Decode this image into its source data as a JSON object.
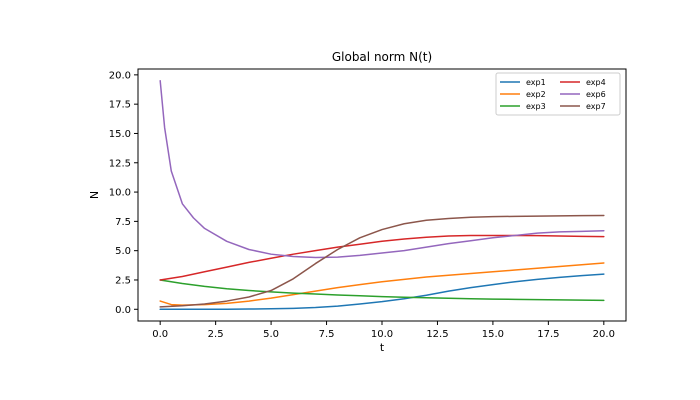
{
  "chart_data": {
    "type": "line",
    "title": "Global norm N(t)",
    "xlabel": "t",
    "ylabel": "N",
    "xlim": [
      -1.0,
      21.0
    ],
    "ylim": [
      -1.0,
      20.5
    ],
    "xticks": [
      0.0,
      2.5,
      5.0,
      7.5,
      10.0,
      12.5,
      15.0,
      17.5,
      20.0
    ],
    "xtick_labels": [
      "0.0",
      "2.5",
      "5.0",
      "7.5",
      "10.0",
      "12.5",
      "15.0",
      "17.5",
      "20.0"
    ],
    "yticks": [
      0.0,
      2.5,
      5.0,
      7.5,
      10.0,
      12.5,
      15.0,
      17.5,
      20.0
    ],
    "ytick_labels": [
      "0.0",
      "2.5",
      "5.0",
      "7.5",
      "10.0",
      "12.5",
      "15.0",
      "17.5",
      "20.0"
    ],
    "grid": false,
    "legend_position": "top-right",
    "legend_columns": 2,
    "series": [
      {
        "name": "exp1",
        "color": "#1f77b4",
        "x": [
          0,
          1,
          2,
          3,
          4,
          5,
          6,
          7,
          8,
          9,
          10,
          11,
          12,
          13,
          14,
          15,
          16,
          17,
          18,
          19,
          20
        ],
        "y": [
          0.0,
          0.0,
          0.0,
          0.0,
          0.02,
          0.05,
          0.08,
          0.15,
          0.27,
          0.45,
          0.65,
          0.9,
          1.2,
          1.55,
          1.85,
          2.1,
          2.35,
          2.55,
          2.72,
          2.87,
          3.0
        ]
      },
      {
        "name": "exp2",
        "color": "#ff7f0e",
        "x": [
          0,
          0.5,
          1,
          2,
          3,
          4,
          5,
          6,
          7,
          8,
          9,
          10,
          11,
          12,
          13,
          14,
          15,
          16,
          17,
          18,
          19,
          20
        ],
        "y": [
          0.7,
          0.4,
          0.35,
          0.4,
          0.5,
          0.7,
          0.95,
          1.25,
          1.55,
          1.85,
          2.1,
          2.35,
          2.55,
          2.75,
          2.9,
          3.05,
          3.2,
          3.35,
          3.5,
          3.65,
          3.8,
          3.95
        ]
      },
      {
        "name": "exp3",
        "color": "#2ca02c",
        "x": [
          0,
          1,
          2,
          3,
          4,
          5,
          6,
          7,
          8,
          9,
          10,
          11,
          12,
          13,
          14,
          15,
          16,
          17,
          18,
          19,
          20
        ],
        "y": [
          2.5,
          2.2,
          1.95,
          1.75,
          1.6,
          1.48,
          1.38,
          1.3,
          1.22,
          1.15,
          1.08,
          1.03,
          0.98,
          0.94,
          0.9,
          0.87,
          0.85,
          0.82,
          0.8,
          0.78,
          0.76
        ]
      },
      {
        "name": "exp4",
        "color": "#d62728",
        "x": [
          0,
          1,
          2,
          3,
          4,
          5,
          6,
          7,
          8,
          9,
          10,
          11,
          12,
          13,
          14,
          15,
          16,
          17,
          18,
          19,
          20
        ],
        "y": [
          2.5,
          2.8,
          3.2,
          3.6,
          4.0,
          4.35,
          4.7,
          5.0,
          5.3,
          5.55,
          5.8,
          6.0,
          6.15,
          6.25,
          6.3,
          6.3,
          6.3,
          6.28,
          6.25,
          6.22,
          6.2
        ]
      },
      {
        "name": "exp6",
        "color": "#9467bd",
        "x": [
          0,
          0.2,
          0.5,
          1,
          1.5,
          2,
          3,
          4,
          5,
          6,
          7,
          8,
          9,
          10,
          11,
          12,
          13,
          14,
          15,
          16,
          17,
          18,
          19,
          20
        ],
        "y": [
          19.5,
          15.5,
          11.8,
          9.0,
          7.8,
          6.9,
          5.8,
          5.1,
          4.7,
          4.5,
          4.42,
          4.45,
          4.6,
          4.8,
          5.0,
          5.3,
          5.6,
          5.85,
          6.1,
          6.3,
          6.5,
          6.6,
          6.65,
          6.7
        ]
      },
      {
        "name": "exp7",
        "color": "#8c564b",
        "x": [
          0,
          1,
          2,
          3,
          4,
          5,
          6,
          7,
          8,
          9,
          10,
          11,
          12,
          13,
          14,
          15,
          16,
          17,
          18,
          19,
          20
        ],
        "y": [
          0.2,
          0.3,
          0.45,
          0.7,
          1.05,
          1.6,
          2.6,
          3.9,
          5.1,
          6.1,
          6.8,
          7.3,
          7.6,
          7.75,
          7.85,
          7.9,
          7.93,
          7.95,
          7.97,
          7.99,
          8.0
        ]
      }
    ]
  }
}
